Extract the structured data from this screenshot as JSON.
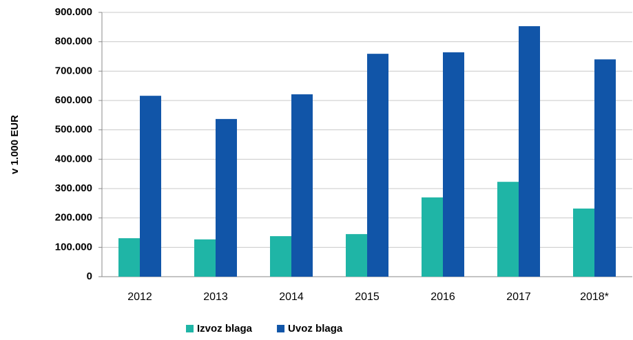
{
  "chart_data": {
    "type": "bar",
    "y_label": "v 1.000 EUR",
    "categories": [
      "2012",
      "2013",
      "2014",
      "2015",
      "2016",
      "2017",
      "2018*"
    ],
    "series": [
      {
        "name": "Izvoz blaga",
        "color": "#1fb5a6",
        "values": [
          131000,
          127000,
          138000,
          145000,
          270000,
          323000,
          232000
        ]
      },
      {
        "name": "Uvoz blaga",
        "color": "#1155a8",
        "values": [
          616000,
          537000,
          621000,
          759000,
          764000,
          853000,
          740000
        ]
      }
    ],
    "ylim": [
      0,
      900000
    ],
    "yticks": [
      0,
      {
        "value": 100000,
        "label": "100.000"
      },
      {
        "value": 200000,
        "label": "200.000"
      },
      {
        "value": 300000,
        "label": "300.000"
      },
      {
        "value": 400000,
        "label": "400.000"
      },
      {
        "value": 500000,
        "label": "500.000"
      },
      {
        "value": 600000,
        "label": "600.000"
      },
      {
        "value": 700000,
        "label": "700.000"
      },
      {
        "value": 800000,
        "label": "800.000"
      },
      {
        "value": 900000,
        "label": "900.000"
      }
    ],
    "grid": true,
    "legend": "bottom"
  }
}
